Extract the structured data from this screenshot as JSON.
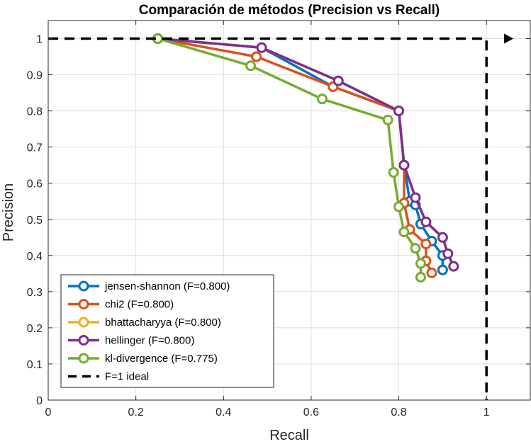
{
  "chart_data": {
    "type": "line",
    "title": "Comparación de métodos (Precision vs Recall)",
    "xlabel": "Recall",
    "ylabel": "Precision",
    "xlim": [
      0,
      1.1
    ],
    "ylim": [
      0,
      1.05
    ],
    "xticks": [
      0,
      0.2,
      0.4,
      0.6,
      0.8,
      1
    ],
    "xtick_labels": [
      "0",
      "0.2",
      "0.4",
      "0.6",
      "0.8",
      "1"
    ],
    "yticks": [
      0,
      0.1,
      0.2,
      0.3,
      0.4,
      0.5,
      0.6,
      0.7,
      0.8,
      0.9,
      1
    ],
    "ytick_labels": [
      "0",
      "0.1",
      "0.2",
      "0.3",
      "0.4",
      "0.5",
      "0.6",
      "0.7",
      "0.8",
      "0.9",
      "1"
    ],
    "grid": true,
    "legend_position": "bottom-left",
    "series": [
      {
        "name": "jensen-shannon (F=0.800)",
        "color": "#0072BD",
        "x": [
          0.25,
          0.487,
          0.65,
          0.8,
          0.812,
          0.825,
          0.838,
          0.85,
          0.875,
          0.9,
          0.9
        ],
        "y": [
          1.0,
          0.975,
          0.867,
          0.8,
          0.65,
          0.55,
          0.54,
          0.487,
          0.44,
          0.4,
          0.36
        ]
      },
      {
        "name": "chi2 (F=0.800)",
        "color": "#D95319",
        "x": [
          0.25,
          0.475,
          0.65,
          0.8,
          0.812,
          0.812,
          0.825,
          0.862,
          0.862,
          0.875
        ],
        "y": [
          1.0,
          0.95,
          0.867,
          0.8,
          0.65,
          0.545,
          0.472,
          0.432,
          0.385,
          0.352
        ]
      },
      {
        "name": "bhattacharyya (F=0.800)",
        "color": "#EDB120",
        "x": [
          0.25,
          0.487,
          0.662,
          0.8,
          0.812,
          0.838,
          0.862,
          0.9,
          0.912,
          0.925
        ],
        "y": [
          1.0,
          0.975,
          0.883,
          0.8,
          0.65,
          0.56,
          0.493,
          0.45,
          0.405,
          0.37
        ]
      },
      {
        "name": "hellinger (F=0.800)",
        "color": "#7E2F8E",
        "x": [
          0.25,
          0.487,
          0.662,
          0.8,
          0.812,
          0.838,
          0.862,
          0.9,
          0.912,
          0.925
        ],
        "y": [
          1.0,
          0.975,
          0.883,
          0.8,
          0.65,
          0.56,
          0.493,
          0.45,
          0.405,
          0.37
        ]
      },
      {
        "name": "kl-divergence (F=0.775)",
        "color": "#77AC30",
        "x": [
          0.25,
          0.462,
          0.625,
          0.775,
          0.788,
          0.8,
          0.812,
          0.838,
          0.85,
          0.85
        ],
        "y": [
          1.0,
          0.925,
          0.833,
          0.775,
          0.63,
          0.535,
          0.465,
          0.42,
          0.378,
          0.34
        ]
      }
    ],
    "reference": {
      "name": "F=1 ideal",
      "color": "#000000",
      "style": "dashed",
      "x": [
        0,
        1,
        1
      ],
      "y": [
        1,
        1,
        0
      ]
    }
  }
}
